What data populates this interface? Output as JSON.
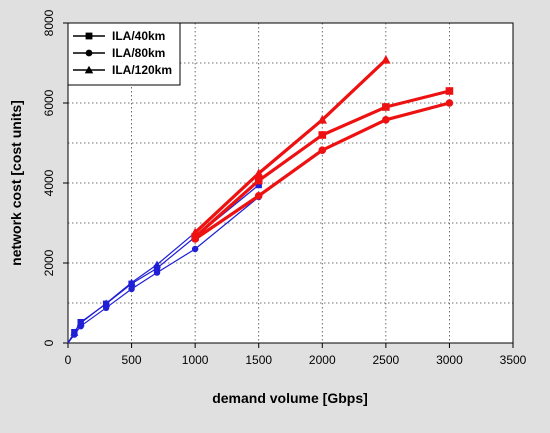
{
  "chart_data": {
    "type": "line",
    "title": "",
    "xlabel": "demand volume [Gbps]",
    "ylabel": "network cost [cost units]",
    "xlim": [
      0,
      3500
    ],
    "ylim": [
      0,
      8000
    ],
    "xticks": [
      0,
      500,
      1000,
      1500,
      2000,
      2500,
      3000,
      3500
    ],
    "yticks": [
      0,
      2000,
      4000,
      6000,
      8000
    ],
    "grid": true,
    "legend_position": "top-left",
    "colors": {
      "low_demand": "#1f1fd6",
      "high_demand": "#ee1111",
      "legend": "#000000",
      "background": "#e0e0e0",
      "plot_area": "#ffffff"
    },
    "series": [
      {
        "name": "ILA/40km",
        "marker": "square",
        "low": {
          "x": [
            0,
            50,
            100,
            300,
            500,
            700,
            1000,
            1500
          ],
          "y": [
            0,
            270,
            520,
            980,
            1480,
            1870,
            2650,
            3950
          ]
        },
        "high": {
          "x": [
            1000,
            1500,
            2000,
            2500,
            3000
          ],
          "y": [
            2650,
            4060,
            5200,
            5900,
            6300
          ]
        }
      },
      {
        "name": "ILA/80km",
        "marker": "circle",
        "low": {
          "x": [
            0,
            50,
            100,
            300,
            500,
            700,
            1000,
            1500
          ],
          "y": [
            0,
            210,
            420,
            880,
            1350,
            1760,
            2350,
            3650
          ]
        },
        "high": {
          "x": [
            1000,
            1500,
            2000,
            2500,
            3000
          ],
          "y": [
            2600,
            3680,
            4820,
            5580,
            6000
          ]
        }
      },
      {
        "name": "ILA/120km",
        "marker": "triangle",
        "low": {
          "x": [
            0,
            50,
            100,
            300,
            500,
            700,
            1000
          ],
          "y": [
            0,
            260,
            500,
            990,
            1510,
            1960,
            2760
          ]
        },
        "high": {
          "x": [
            1000,
            1500,
            2000,
            2500
          ],
          "y": [
            2760,
            4240,
            5580,
            7080
          ]
        }
      }
    ]
  }
}
